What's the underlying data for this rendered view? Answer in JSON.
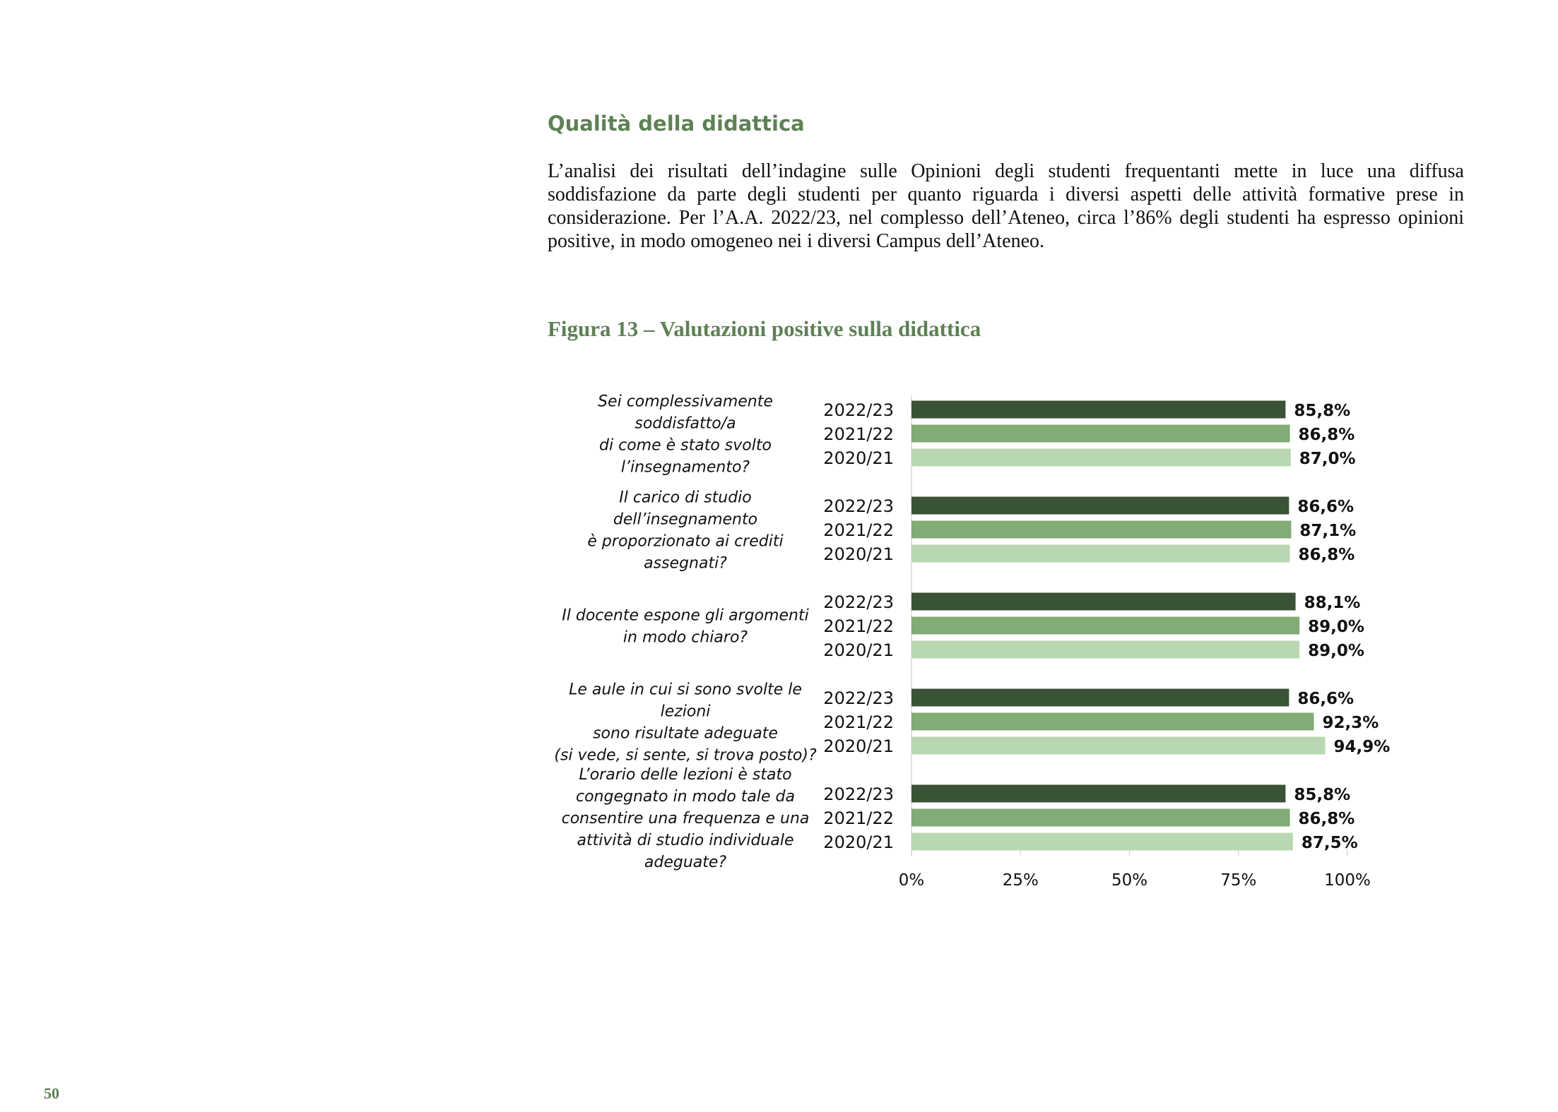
{
  "section": {
    "title": "Qualità della didattica",
    "intro": "L’analisi dei risultati dell’indagine sulle Opinioni degli studenti frequentanti mette in luce una diffusa soddisfazione da parte degli studenti per quanto riguarda i diversi aspetti delle attività formative prese in considerazione. Per l’A.A. 2022/23, nel complesso dell’Ateneo, circa l’86% degli studenti ha espresso opinioni positive, in modo omogeneo nei i diversi Campus dell’Ateneo."
  },
  "figure_title": "Figura 13 – Valutazioni positive sulla didattica",
  "page_number": "50",
  "colors": {
    "2022/23": "#3a5235",
    "2021/22": "#82ab75",
    "2020/21": "#bad7b3",
    "title_green": "#5e8055"
  },
  "chart_data": {
    "type": "bar",
    "orientation": "horizontal",
    "xlim": [
      0,
      100
    ],
    "x_ticks": [
      "0%",
      "25%",
      "50%",
      "75%",
      "100%"
    ],
    "groups": [
      {
        "question_lines": [
          "Sei complessivamente",
          "soddisfatto/a",
          "di come è stato svolto",
          "l’insegnamento?"
        ],
        "bars": [
          {
            "year": "2022/23",
            "value": 85.8,
            "label": "85,8%"
          },
          {
            "year": "2021/22",
            "value": 86.8,
            "label": "86,8%"
          },
          {
            "year": "2020/21",
            "value": 87.0,
            "label": "87,0%"
          }
        ]
      },
      {
        "question_lines": [
          "Il carico di studio",
          "dell’insegnamento",
          "è proporzionato ai crediti",
          "assegnati?"
        ],
        "bars": [
          {
            "year": "2022/23",
            "value": 86.6,
            "label": "86,6%"
          },
          {
            "year": "2021/22",
            "value": 87.1,
            "label": "87,1%"
          },
          {
            "year": "2020/21",
            "value": 86.8,
            "label": "86,8%"
          }
        ]
      },
      {
        "question_lines": [
          "Il docente espone gli argomenti",
          "in modo chiaro?"
        ],
        "bars": [
          {
            "year": "2022/23",
            "value": 88.1,
            "label": "88,1%"
          },
          {
            "year": "2021/22",
            "value": 89.0,
            "label": "89,0%"
          },
          {
            "year": "2020/21",
            "value": 89.0,
            "label": "89,0%"
          }
        ]
      },
      {
        "question_lines": [
          "Le aule in cui si sono svolte le",
          "lezioni",
          "sono risultate adeguate",
          "(si vede, si sente, si trova posto)?"
        ],
        "bars": [
          {
            "year": "2022/23",
            "value": 86.6,
            "label": "86,6%"
          },
          {
            "year": "2021/22",
            "value": 92.3,
            "label": "92,3%"
          },
          {
            "year": "2020/21",
            "value": 94.9,
            "label": "94,9%"
          }
        ]
      },
      {
        "question_lines": [
          "L’orario delle lezioni è stato",
          "congegnato in modo tale da",
          "consentire una frequenza e una",
          "attività di studio individuale",
          "adeguate?"
        ],
        "bars": [
          {
            "year": "2022/23",
            "value": 85.8,
            "label": "85,8%"
          },
          {
            "year": "2021/22",
            "value": 86.8,
            "label": "86,8%"
          },
          {
            "year": "2020/21",
            "value": 87.5,
            "label": "87,5%"
          }
        ]
      }
    ]
  }
}
